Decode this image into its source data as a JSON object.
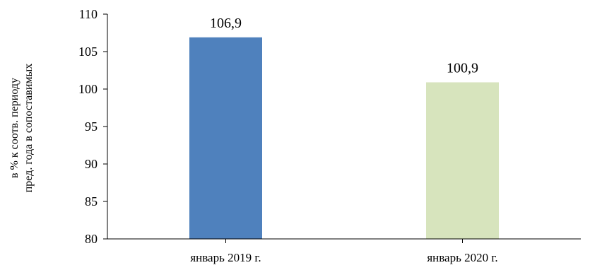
{
  "chart_data": {
    "type": "bar",
    "title": "",
    "xlabel": "",
    "ylabel_lines": [
      "в % к соотв. периоду",
      "пред. года в сопоставимых"
    ],
    "categories": [
      "январь 2019 г.",
      "январь 2020 г."
    ],
    "values": [
      106.9,
      100.9
    ],
    "data_labels": [
      "106,9",
      "100,9"
    ],
    "ylim": [
      80,
      110
    ],
    "yticks": [
      80,
      85,
      90,
      95,
      100,
      105,
      110
    ],
    "bar_colors": [
      "#4f81bd",
      "#d7e4bd"
    ],
    "grid": false,
    "legend": "none"
  }
}
